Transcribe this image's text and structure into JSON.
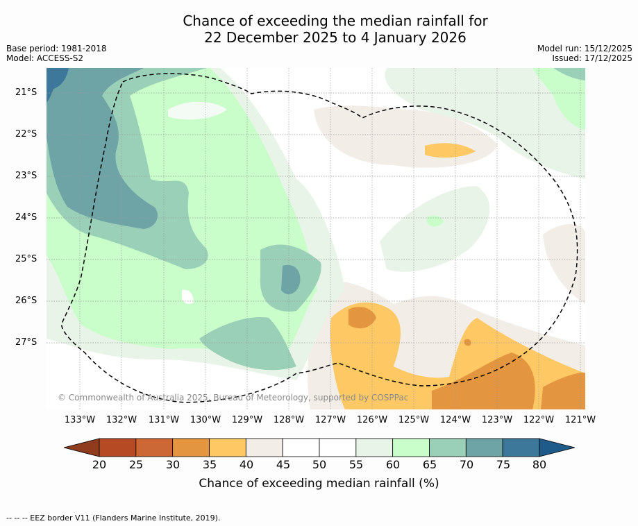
{
  "title_line1": "Chance of exceeding the median rainfall for",
  "title_line2": "22 December 2025 to 4 January 2026",
  "base_period": "Base period: 1981-2018",
  "model": "Model: ACCESS-S2",
  "model_run": "Model run: 15/12/2025",
  "issued": "Issued: 17/12/2025",
  "copyright": "© Commonwealth of Australia 2025, Bureau of Meteorology, supported by COSPPac",
  "lat_labels": [
    "21°S",
    "22°S",
    "23°S",
    "24°S",
    "25°S",
    "26°S",
    "27°S"
  ],
  "lon_labels": [
    "133°W",
    "132°W",
    "131°W",
    "130°W",
    "129°W",
    "128°W",
    "127°W",
    "126°W",
    "125°W",
    "124°W",
    "123°W",
    "122°W",
    "121°W"
  ],
  "colorbar": {
    "label": "Chance of exceeding median rainfall (%)",
    "ticks": [
      "20",
      "25",
      "30",
      "35",
      "40",
      "45",
      "50",
      "55",
      "60",
      "65",
      "70",
      "75",
      "80"
    ],
    "colors": [
      "#b54a25",
      "#cc6835",
      "#e3953f",
      "#fec965",
      "#f2ede7",
      "#ffffff",
      "#ffffff",
      "#e8f4e8",
      "#c9fdca",
      "#9ad0b8",
      "#6ea4a6",
      "#3d789a"
    ],
    "low_extend_color": "#8e3b1e",
    "high_extend_color": "#1e5a8a"
  },
  "footer": "--  --  -- EEZ border V11 (Flanders Marine Institute, 2019)."
}
